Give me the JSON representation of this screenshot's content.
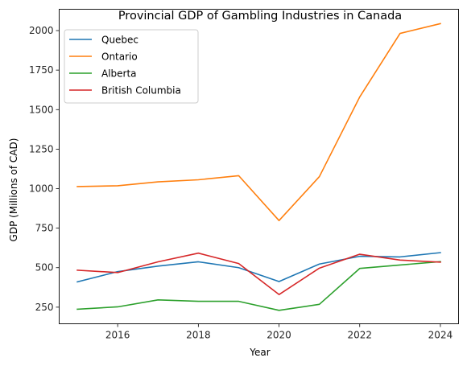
{
  "chart_data": {
    "type": "line",
    "title": "Provincial GDP of Gambling Industries in Canada",
    "xlabel": "Year",
    "ylabel": "GDP (Millions of CAD)",
    "x": [
      2015,
      2016,
      2017,
      2018,
      2019,
      2020,
      2021,
      2022,
      2023,
      2024
    ],
    "xlim": [
      2014.55,
      2024.45
    ],
    "ylim": [
      145,
      2135
    ],
    "xticks": [
      2016,
      2018,
      2020,
      2022,
      2024
    ],
    "yticks": [
      250,
      500,
      750,
      1000,
      1250,
      1500,
      1750,
      2000
    ],
    "xtick_labels": [
      "2016",
      "2018",
      "2020",
      "2022",
      "2024"
    ],
    "ytick_labels": [
      "250",
      "500",
      "750",
      "1000",
      "1250",
      "1500",
      "1750",
      "2000"
    ],
    "grid": false,
    "legend_position": "top-left",
    "series": [
      {
        "name": "Quebec",
        "color": "#1f77b4",
        "values": [
          410,
          475,
          510,
          537,
          500,
          412,
          523,
          572,
          568,
          595
        ]
      },
      {
        "name": "Ontario",
        "color": "#ff7f0e",
        "values": [
          1013,
          1018,
          1043,
          1056,
          1082,
          798,
          1076,
          1580,
          1982,
          2044
        ]
      },
      {
        "name": "Alberta",
        "color": "#2ca02c",
        "values": [
          237,
          252,
          296,
          287,
          287,
          230,
          268,
          495,
          517,
          538
        ]
      },
      {
        "name": "British Columbia",
        "color": "#d62728",
        "values": [
          484,
          469,
          537,
          592,
          526,
          330,
          497,
          585,
          548,
          535
        ]
      }
    ]
  }
}
